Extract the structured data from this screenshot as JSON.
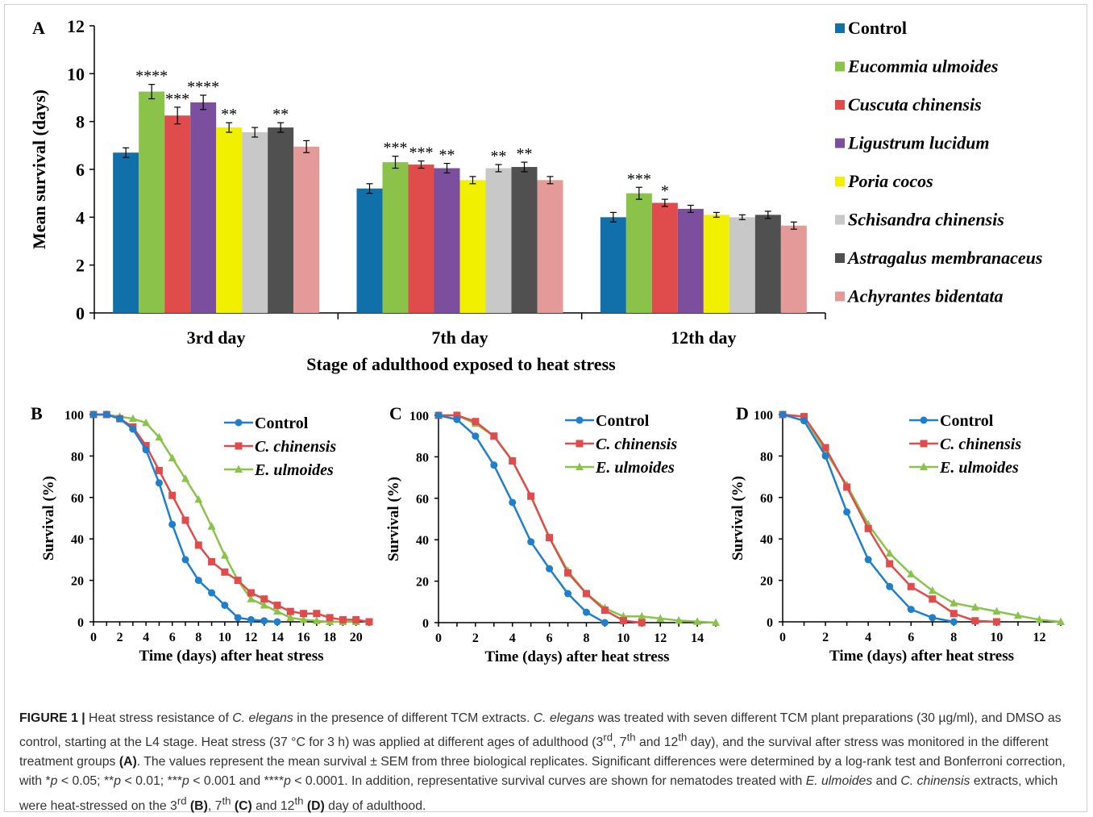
{
  "colors": {
    "Control": "#1170aa",
    "Eucommia ulmoides": "#8bc34a",
    "Cuscuta chinensis": "#e04b4b",
    "Ligustrum lucidum": "#7b4f9d",
    "Poria cocos": "#f0f000",
    "Schisandra chinensis": "#c8c8c8",
    "Astragalus membranaceus": "#505050",
    "Achyrantes bidentata": "#e49a98",
    "line_control": "#1f7fcc",
    "line_cchinensis": "#e04b4b",
    "line_eulmoides": "#8bc34a"
  },
  "chart_data": [
    {
      "panel": "A",
      "type": "bar",
      "ylabel": "Mean survival (days)",
      "xlabel": "Stage of adulthood exposed to heat stress",
      "ylim": [
        0,
        12
      ],
      "yticks": [
        "0",
        "2",
        "4",
        "6",
        "8",
        "10",
        "12"
      ],
      "categories": [
        "3rd day",
        "7th day",
        "12th day"
      ],
      "legend_position": "right",
      "series": [
        {
          "name": "Control",
          "values": [
            6.7,
            5.2,
            4.0
          ],
          "sem": [
            0.2,
            0.2,
            0.2
          ],
          "stars": [
            "",
            "",
            ""
          ]
        },
        {
          "name": "Eucommia ulmoides",
          "values": [
            9.25,
            6.3,
            5.0
          ],
          "sem": [
            0.3,
            0.25,
            0.25
          ],
          "stars": [
            "****",
            "***",
            "***"
          ]
        },
        {
          "name": "Cuscuta chinensis",
          "values": [
            8.25,
            6.2,
            4.6
          ],
          "sem": [
            0.35,
            0.15,
            0.15
          ],
          "stars": [
            "***",
            "***",
            "*"
          ]
        },
        {
          "name": "Ligustrum lucidum",
          "values": [
            8.8,
            6.05,
            4.35
          ],
          "sem": [
            0.3,
            0.2,
            0.15
          ],
          "stars": [
            "****",
            "**",
            ""
          ]
        },
        {
          "name": "Poria cocos",
          "values": [
            7.75,
            5.55,
            4.1
          ],
          "sem": [
            0.2,
            0.15,
            0.1
          ],
          "stars": [
            "**",
            "",
            ""
          ]
        },
        {
          "name": "Schisandra chinensis",
          "values": [
            7.55,
            6.05,
            4.0
          ],
          "sem": [
            0.2,
            0.15,
            0.1
          ],
          "stars": [
            "",
            "**",
            ""
          ]
        },
        {
          "name": "Astragalus membranaceus",
          "values": [
            7.75,
            6.1,
            4.1
          ],
          "sem": [
            0.2,
            0.2,
            0.15
          ],
          "stars": [
            "**",
            "**",
            ""
          ]
        },
        {
          "name": "Achyrantes bidentata",
          "values": [
            6.95,
            5.55,
            3.65
          ],
          "sem": [
            0.25,
            0.15,
            0.15
          ],
          "stars": [
            "",
            "",
            ""
          ]
        }
      ]
    },
    {
      "panel": "B",
      "type": "line",
      "ylabel": "Survival (%)",
      "xlabel": "Time (days) after heat stress",
      "xlim": [
        0,
        21
      ],
      "ylim": [
        0,
        100
      ],
      "xticks": [
        "0",
        "2",
        "4",
        "6",
        "8",
        "10",
        "12",
        "14",
        "16",
        "18",
        "20"
      ],
      "yticks": [
        "0",
        "20",
        "40",
        "60",
        "80",
        "100"
      ],
      "legend_position": "top-right",
      "series": [
        {
          "name": "Control",
          "x": [
            0,
            1,
            2,
            3,
            4,
            5,
            6,
            7,
            8,
            9,
            10,
            11,
            12,
            13,
            14
          ],
          "y": [
            100,
            100,
            98,
            93,
            83,
            67,
            47,
            30,
            20,
            14,
            8,
            2,
            1,
            0.5,
            0
          ]
        },
        {
          "name": "C. chinensis",
          "x": [
            0,
            1,
            2,
            3,
            4,
            5,
            6,
            7,
            8,
            9,
            10,
            11,
            12,
            13,
            14,
            15,
            16,
            17,
            18,
            19,
            20,
            21
          ],
          "y": [
            100,
            100,
            98,
            94,
            85,
            73,
            61,
            49,
            37,
            29,
            24,
            20,
            14,
            11,
            8,
            5,
            4,
            4,
            2,
            1,
            1,
            0
          ]
        },
        {
          "name": "E. ulmoides",
          "x": [
            0,
            1,
            2,
            3,
            4,
            5,
            6,
            7,
            8,
            9,
            10,
            11,
            12,
            13,
            14,
            15,
            16,
            17,
            18,
            19,
            20
          ],
          "y": [
            100,
            100,
            99,
            98,
            96,
            89,
            79,
            69,
            59,
            46,
            32,
            20,
            11,
            8,
            5,
            2,
            1,
            0.5,
            0,
            0,
            0
          ]
        }
      ]
    },
    {
      "panel": "C",
      "type": "line",
      "ylabel": "Survival (%)",
      "xlabel": "Time (days) after heat stress",
      "xlim": [
        0,
        15
      ],
      "ylim": [
        0,
        100
      ],
      "xticks": [
        "0",
        "2",
        "4",
        "6",
        "8",
        "10",
        "12",
        "14"
      ],
      "yticks": [
        "0",
        "20",
        "40",
        "60",
        "80",
        "100"
      ],
      "legend_position": "top-right",
      "series": [
        {
          "name": "Control",
          "x": [
            0,
            1,
            2,
            3,
            4,
            5,
            6,
            7,
            8,
            9
          ],
          "y": [
            100,
            98,
            90,
            76,
            58,
            39,
            26,
            14,
            5,
            0
          ]
        },
        {
          "name": "C. chinensis",
          "x": [
            0,
            1,
            2,
            3,
            4,
            5,
            6,
            7,
            8,
            9,
            10,
            11
          ],
          "y": [
            100,
            100,
            97,
            90,
            78,
            61,
            41,
            24,
            14,
            6,
            1,
            0
          ]
        },
        {
          "name": "E. ulmoides",
          "x": [
            0,
            1,
            2,
            3,
            4,
            5,
            6,
            7,
            8,
            9,
            10,
            11,
            12,
            13,
            14,
            15
          ],
          "y": [
            100,
            100,
            96,
            90,
            78,
            61,
            41,
            25,
            14,
            7,
            3,
            3,
            2,
            1,
            0.5,
            0
          ]
        }
      ]
    },
    {
      "panel": "D",
      "type": "line",
      "ylabel": "Survival (%)",
      "xlabel": "Time (days) after heat stress",
      "xlim": [
        0,
        13
      ],
      "ylim": [
        0,
        100
      ],
      "xticks": [
        "0",
        "2",
        "4",
        "6",
        "8",
        "10",
        "12"
      ],
      "yticks": [
        "0",
        "20",
        "40",
        "60",
        "80",
        "100"
      ],
      "legend_position": "top-right",
      "series": [
        {
          "name": "Control",
          "x": [
            0,
            1,
            2,
            3,
            4,
            5,
            6,
            7,
            8
          ],
          "y": [
            100,
            97,
            80,
            53,
            30,
            17,
            6,
            2,
            0
          ]
        },
        {
          "name": "C. chinensis",
          "x": [
            0,
            1,
            2,
            3,
            4,
            5,
            6,
            7,
            8,
            9,
            10
          ],
          "y": [
            100,
            99,
            84,
            65,
            45,
            28,
            17,
            11,
            4,
            0.5,
            0
          ]
        },
        {
          "name": "E. ulmoides",
          "x": [
            0,
            1,
            2,
            3,
            4,
            5,
            6,
            7,
            8,
            9,
            10,
            11,
            12,
            13
          ],
          "y": [
            100,
            99,
            82,
            66,
            47,
            33,
            23,
            15,
            9,
            7,
            5,
            3,
            1,
            0
          ]
        }
      ]
    }
  ],
  "caption": {
    "label": "FIGURE 1 |",
    "segments": [
      {
        "t": " Heat stress resistance of ",
        "s": "n"
      },
      {
        "t": "C. elegans",
        "s": "i"
      },
      {
        "t": " in the presence of different TCM extracts. ",
        "s": "n"
      },
      {
        "t": "C. elegans",
        "s": "i"
      },
      {
        "t": " was treated with seven different TCM plant preparations (30 µg/ml), and DMSO as control, starting at the L4 stage. Heat stress (37 °C for 3 h) was applied at different ages of adulthood (3",
        "s": "n"
      },
      {
        "t": "rd",
        "s": "sup"
      },
      {
        "t": ", 7",
        "s": "n"
      },
      {
        "t": "th",
        "s": "sup"
      },
      {
        "t": " and 12",
        "s": "n"
      },
      {
        "t": "th",
        "s": "sup"
      },
      {
        "t": " day), and the survival after stress was monitored in the different treatment groups ",
        "s": "n"
      },
      {
        "t": "(A)",
        "s": "b"
      },
      {
        "t": ". The values represent the mean survival ± SEM from three biological replicates. Significant differences were determined by a log-rank test and Bonferroni correction, with *",
        "s": "n"
      },
      {
        "t": "p",
        "s": "i"
      },
      {
        "t": " < 0.05; **",
        "s": "n"
      },
      {
        "t": "p",
        "s": "i"
      },
      {
        "t": " < 0.01; ***",
        "s": "n"
      },
      {
        "t": "p",
        "s": "i"
      },
      {
        "t": " < 0.001 and ****",
        "s": "n"
      },
      {
        "t": "p",
        "s": "i"
      },
      {
        "t": " < 0.0001. In addition, representative survival curves are shown for nematodes treated with ",
        "s": "n"
      },
      {
        "t": "E. ulmoides",
        "s": "i"
      },
      {
        "t": " and ",
        "s": "n"
      },
      {
        "t": "C. chinensis",
        "s": "i"
      },
      {
        "t": " extracts, which were heat-stressed on the 3",
        "s": "n"
      },
      {
        "t": "rd",
        "s": "sup"
      },
      {
        "t": " ",
        "s": "n"
      },
      {
        "t": "(B)",
        "s": "b"
      },
      {
        "t": ", 7",
        "s": "n"
      },
      {
        "t": "th",
        "s": "sup"
      },
      {
        "t": " ",
        "s": "n"
      },
      {
        "t": "(C)",
        "s": "b"
      },
      {
        "t": " and 12",
        "s": "n"
      },
      {
        "t": "th",
        "s": "sup"
      },
      {
        "t": " ",
        "s": "n"
      },
      {
        "t": "(D)",
        "s": "b"
      },
      {
        "t": " day of adulthood.",
        "s": "n"
      }
    ]
  }
}
